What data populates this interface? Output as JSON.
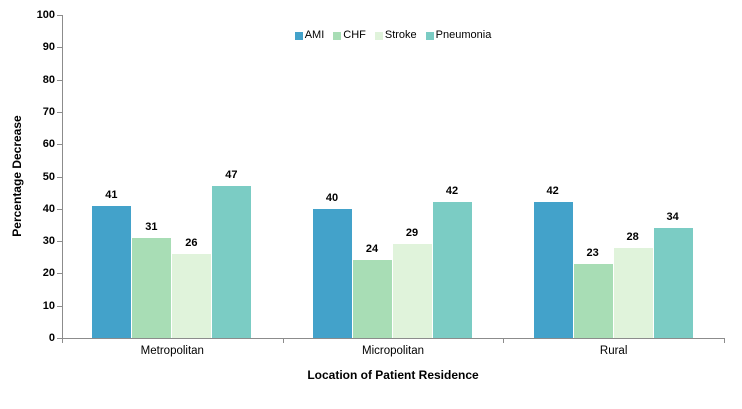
{
  "chart_data": {
    "type": "bar",
    "title": "",
    "xlabel": "Location of Patient Residence",
    "ylabel": "Percentage Decrease",
    "categories": [
      "Metropolitan",
      "Micropolitan",
      "Rural"
    ],
    "series": [
      {
        "name": "AMI",
        "color": "#43A2CA",
        "values": [
          41,
          40,
          42
        ]
      },
      {
        "name": "CHF",
        "color": "#A8DDB5",
        "values": [
          31,
          24,
          23
        ]
      },
      {
        "name": "Stroke",
        "color": "#E0F3DB",
        "values": [
          26,
          29,
          28
        ]
      },
      {
        "name": "Pneumonia",
        "color": "#7BCCC4",
        "values": [
          47,
          42,
          34
        ]
      }
    ],
    "ylim": [
      0,
      100
    ],
    "ytick_step": 10,
    "ytick_labels": [
      "0",
      "10",
      "20",
      "30",
      "40",
      "50",
      "60",
      "70",
      "80",
      "90",
      "100"
    ],
    "grid": false,
    "legend_position": "top-center",
    "axis_color": "#8c8c8c",
    "text_color": "#000000",
    "background_color": "#ffffff"
  }
}
